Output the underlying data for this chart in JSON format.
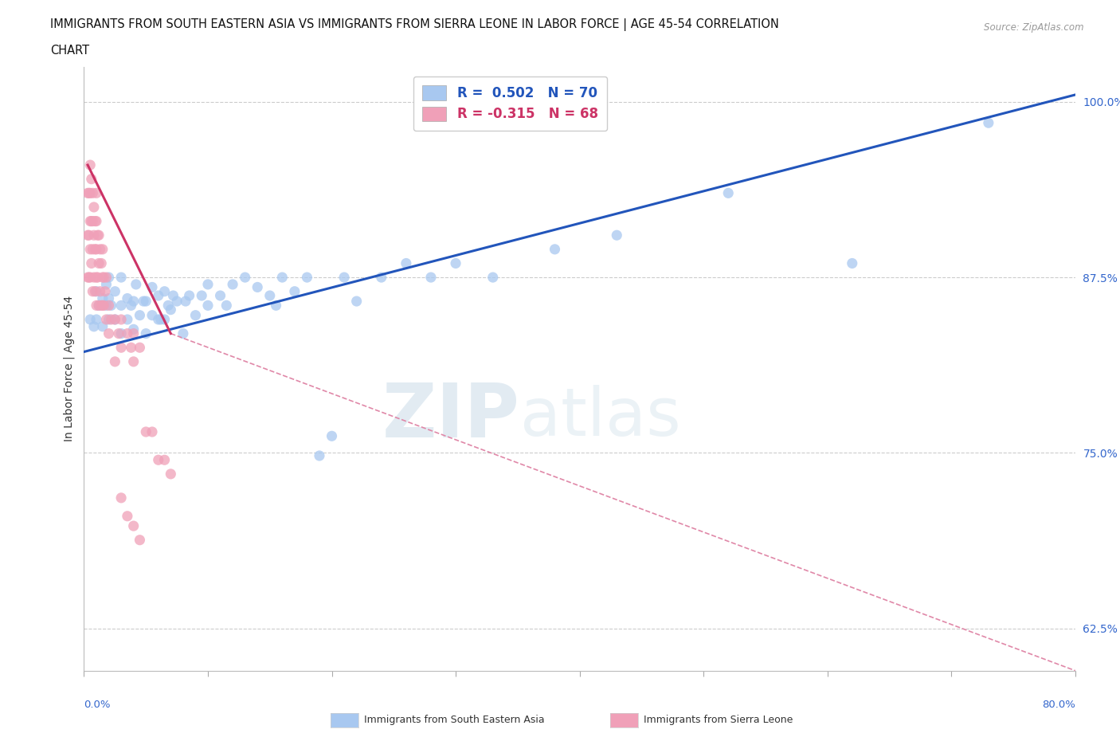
{
  "title_line1": "IMMIGRANTS FROM SOUTH EASTERN ASIA VS IMMIGRANTS FROM SIERRA LEONE IN LABOR FORCE | AGE 45-54 CORRELATION",
  "title_line2": "CHART",
  "source": "Source: ZipAtlas.com",
  "ylabel": "In Labor Force | Age 45-54",
  "xlim": [
    0.0,
    0.8
  ],
  "ylim": [
    0.595,
    1.025
  ],
  "ytick_positions": [
    0.625,
    0.75,
    0.875,
    1.0
  ],
  "ytick_labels": [
    "62.5%",
    "75.0%",
    "87.5%",
    "100.0%"
  ],
  "R_blue": 0.502,
  "N_blue": 70,
  "R_pink": -0.315,
  "N_pink": 68,
  "blue_color": "#A8C8F0",
  "pink_color": "#F0A0B8",
  "blue_line_color": "#2255BB",
  "pink_line_color_solid": "#CC3366",
  "pink_line_color_dashed": "#E088A8",
  "grid_color": "#CCCCCC",
  "background_color": "#FFFFFF",
  "watermark_zip": "ZIP",
  "watermark_atlas": "atlas",
  "legend_label_blue": "Immigrants from South Eastern Asia",
  "legend_label_pink": "Immigrants from Sierra Leone",
  "blue_scatter_x": [
    0.005,
    0.008,
    0.01,
    0.01,
    0.012,
    0.015,
    0.015,
    0.018,
    0.018,
    0.02,
    0.02,
    0.02,
    0.022,
    0.025,
    0.025,
    0.03,
    0.03,
    0.03,
    0.035,
    0.035,
    0.038,
    0.04,
    0.04,
    0.042,
    0.045,
    0.048,
    0.05,
    0.05,
    0.055,
    0.055,
    0.06,
    0.06,
    0.062,
    0.065,
    0.065,
    0.068,
    0.07,
    0.072,
    0.075,
    0.08,
    0.082,
    0.085,
    0.09,
    0.095,
    0.1,
    0.1,
    0.11,
    0.115,
    0.12,
    0.13,
    0.14,
    0.15,
    0.155,
    0.16,
    0.17,
    0.18,
    0.19,
    0.2,
    0.21,
    0.22,
    0.24,
    0.26,
    0.28,
    0.3,
    0.33,
    0.38,
    0.43,
    0.52,
    0.62,
    0.73
  ],
  "blue_scatter_y": [
    0.845,
    0.84,
    0.845,
    0.865,
    0.855,
    0.84,
    0.86,
    0.855,
    0.87,
    0.845,
    0.86,
    0.875,
    0.855,
    0.845,
    0.865,
    0.835,
    0.855,
    0.875,
    0.845,
    0.86,
    0.855,
    0.838,
    0.858,
    0.87,
    0.848,
    0.858,
    0.835,
    0.858,
    0.848,
    0.868,
    0.845,
    0.862,
    0.845,
    0.845,
    0.865,
    0.855,
    0.852,
    0.862,
    0.858,
    0.835,
    0.858,
    0.862,
    0.848,
    0.862,
    0.87,
    0.855,
    0.862,
    0.855,
    0.87,
    0.875,
    0.868,
    0.862,
    0.855,
    0.875,
    0.865,
    0.875,
    0.748,
    0.762,
    0.875,
    0.858,
    0.875,
    0.885,
    0.875,
    0.885,
    0.875,
    0.895,
    0.905,
    0.935,
    0.885,
    0.985
  ],
  "pink_scatter_x": [
    0.003,
    0.003,
    0.003,
    0.004,
    0.004,
    0.004,
    0.005,
    0.005,
    0.005,
    0.005,
    0.005,
    0.006,
    0.006,
    0.006,
    0.007,
    0.007,
    0.007,
    0.007,
    0.008,
    0.008,
    0.008,
    0.009,
    0.009,
    0.009,
    0.01,
    0.01,
    0.01,
    0.01,
    0.01,
    0.011,
    0.011,
    0.012,
    0.012,
    0.012,
    0.013,
    0.013,
    0.014,
    0.014,
    0.015,
    0.015,
    0.015,
    0.016,
    0.016,
    0.017,
    0.018,
    0.018,
    0.02,
    0.02,
    0.022,
    0.025,
    0.025,
    0.028,
    0.03,
    0.03,
    0.035,
    0.038,
    0.04,
    0.04,
    0.045,
    0.05,
    0.055,
    0.06,
    0.065,
    0.07,
    0.03,
    0.035,
    0.04,
    0.045
  ],
  "pink_scatter_y": [
    0.935,
    0.905,
    0.875,
    0.935,
    0.905,
    0.875,
    0.955,
    0.935,
    0.915,
    0.895,
    0.875,
    0.945,
    0.915,
    0.885,
    0.935,
    0.915,
    0.895,
    0.865,
    0.925,
    0.905,
    0.875,
    0.915,
    0.895,
    0.865,
    0.935,
    0.915,
    0.895,
    0.875,
    0.855,
    0.905,
    0.875,
    0.905,
    0.885,
    0.855,
    0.895,
    0.865,
    0.885,
    0.855,
    0.895,
    0.875,
    0.855,
    0.875,
    0.855,
    0.865,
    0.875,
    0.845,
    0.855,
    0.835,
    0.845,
    0.845,
    0.815,
    0.835,
    0.845,
    0.825,
    0.835,
    0.825,
    0.835,
    0.815,
    0.825,
    0.765,
    0.765,
    0.745,
    0.745,
    0.735,
    0.718,
    0.705,
    0.698,
    0.688
  ],
  "blue_trend_x0": 0.0,
  "blue_trend_y0": 0.822,
  "blue_trend_x1": 0.8,
  "blue_trend_y1": 1.005,
  "pink_trend_solid_x0": 0.003,
  "pink_trend_solid_y0": 0.955,
  "pink_trend_solid_x1": 0.07,
  "pink_trend_solid_y1": 0.835,
  "pink_trend_dashed_x0": 0.07,
  "pink_trend_dashed_y0": 0.835,
  "pink_trend_dashed_x1": 0.8,
  "pink_trend_dashed_y1": 0.595
}
